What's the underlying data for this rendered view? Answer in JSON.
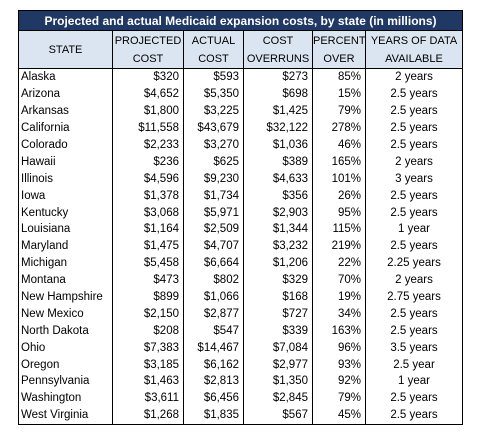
{
  "table": {
    "title": "Projected and actual Medicaid expansion costs, by state (in millions)",
    "header": [
      [
        "STATE"
      ],
      [
        "PROJECTED",
        "COST"
      ],
      [
        "ACTUAL",
        "COST"
      ],
      [
        "COST",
        "OVERRUNS"
      ],
      [
        "PERCENT",
        "OVER"
      ],
      [
        "YEARS OF DATA",
        "AVAILABLE"
      ]
    ],
    "rows": [
      [
        "Alaska",
        "$320",
        "$593",
        "$273",
        "85%",
        "2 years"
      ],
      [
        "Arizona",
        "$4,652",
        "$5,350",
        "$698",
        "15%",
        "2.5 years"
      ],
      [
        "Arkansas",
        "$1,800",
        "$3,225",
        "$1,425",
        "79%",
        "2.5 years"
      ],
      [
        "California",
        "$11,558",
        "$43,679",
        "$32,122",
        "278%",
        "2.5 years"
      ],
      [
        "Colorado",
        "$2,233",
        "$3,270",
        "$1,036",
        "46%",
        "2.5 years"
      ],
      [
        "Hawaii",
        "$236",
        "$625",
        "$389",
        "165%",
        "2 years"
      ],
      [
        "Illinois",
        "$4,596",
        "$9,230",
        "$4,633",
        "101%",
        "3 years"
      ],
      [
        "Iowa",
        "$1,378",
        "$1,734",
        "$356",
        "26%",
        "2.5 years"
      ],
      [
        "Kentucky",
        "$3,068",
        "$5,971",
        "$2,903",
        "95%",
        "2.5 years"
      ],
      [
        "Louisiana",
        "$1,164",
        "$2,509",
        "$1,344",
        "115%",
        "1 year"
      ],
      [
        "Maryland",
        "$1,475",
        "$4,707",
        "$3,232",
        "219%",
        "2.5 years"
      ],
      [
        "Michigan",
        "$5,458",
        "$6,664",
        "$1,206",
        "22%",
        "2.25 years"
      ],
      [
        "Montana",
        "$473",
        "$802",
        "$329",
        "70%",
        "2 years"
      ],
      [
        "New Hampshire",
        "$899",
        "$1,066",
        "$168",
        "19%",
        "2.75 years"
      ],
      [
        "New Mexico",
        "$2,150",
        "$2,877",
        "$727",
        "34%",
        "2.5 years"
      ],
      [
        "North Dakota",
        "$208",
        "$547",
        "$339",
        "163%",
        "2.5 years"
      ],
      [
        "Ohio",
        "$7,383",
        "$14,467",
        "$7,084",
        "96%",
        "3.5 years"
      ],
      [
        "Oregon",
        "$3,185",
        "$6,162",
        "$2,977",
        "93%",
        "2.5 year"
      ],
      [
        "Pennsylvania",
        "$1,463",
        "$2,813",
        "$1,350",
        "92%",
        "1 year"
      ],
      [
        "Washington",
        "$3,611",
        "$6,456",
        "$2,845",
        "79%",
        "2.5 years"
      ],
      [
        "West Virginia",
        "$1,268",
        "$1,835",
        "$567",
        "45%",
        "2.5 years"
      ]
    ]
  }
}
